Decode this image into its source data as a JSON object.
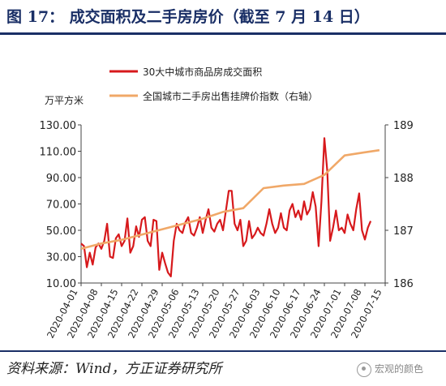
{
  "header": {
    "title": "图 17：   成交面积及二手房房价（截至 7 月 14 日）"
  },
  "footer": {
    "source": "资料来源：Wind，方正证券研究所",
    "watermark": "宏观的颜色"
  },
  "colors": {
    "series1": "#d7191c",
    "series2": "#f0a868",
    "axis": "#444444",
    "title": "#1a2f66"
  },
  "chart_data": {
    "type": "line",
    "left_unit": "万平方米",
    "legend": [
      "30大中城市商品房成交面积",
      "全国城市二手房出售挂牌价指数（右轴）"
    ],
    "ylim_left": [
      10,
      130
    ],
    "yticks_left": [
      "10.00",
      "30.00",
      "50.00",
      "70.00",
      "90.00",
      "110.00",
      "130.00"
    ],
    "ylim_right": [
      186,
      189
    ],
    "yticks_right": [
      "186",
      "187",
      "188",
      "189"
    ],
    "x_start": "2020-04-01",
    "x_end": "2020-07-15",
    "x_ticks": [
      "2020-04-01",
      "2020-04-08",
      "2020-04-15",
      "2020-04-22",
      "2020-04-29",
      "2020-05-06",
      "2020-05-13",
      "2020-05-20",
      "2020-05-27",
      "2020-06-03",
      "2020-06-10",
      "2020-06-17",
      "2020-06-24",
      "2020-07-01",
      "2020-07-08",
      "2020-07-15"
    ],
    "series": [
      {
        "name": "30大中城市商品房成交面积",
        "axis": "left",
        "points": [
          [
            "2020-04-01",
            40
          ],
          [
            "2020-04-02",
            38
          ],
          [
            "2020-04-03",
            22
          ],
          [
            "2020-04-04",
            33
          ],
          [
            "2020-04-05",
            24
          ],
          [
            "2020-04-06",
            37
          ],
          [
            "2020-04-07",
            40
          ],
          [
            "2020-04-08",
            36
          ],
          [
            "2020-04-09",
            42
          ],
          [
            "2020-04-10",
            55
          ],
          [
            "2020-04-11",
            30
          ],
          [
            "2020-04-12",
            29
          ],
          [
            "2020-04-13",
            44
          ],
          [
            "2020-04-14",
            47
          ],
          [
            "2020-04-15",
            38
          ],
          [
            "2020-04-16",
            42
          ],
          [
            "2020-04-17",
            59
          ],
          [
            "2020-04-18",
            33
          ],
          [
            "2020-04-19",
            38
          ],
          [
            "2020-04-20",
            53
          ],
          [
            "2020-04-21",
            45
          ],
          [
            "2020-04-22",
            58
          ],
          [
            "2020-04-23",
            60
          ],
          [
            "2020-04-24",
            42
          ],
          [
            "2020-04-25",
            38
          ],
          [
            "2020-04-26",
            58
          ],
          [
            "2020-04-27",
            57
          ],
          [
            "2020-04-28",
            20
          ],
          [
            "2020-04-29",
            33
          ],
          [
            "2020-04-30",
            25
          ],
          [
            "2020-05-01",
            18
          ],
          [
            "2020-05-02",
            15
          ],
          [
            "2020-05-03",
            42
          ],
          [
            "2020-05-04",
            55
          ],
          [
            "2020-05-05",
            50
          ],
          [
            "2020-05-06",
            48
          ],
          [
            "2020-05-07",
            56
          ],
          [
            "2020-05-08",
            60
          ],
          [
            "2020-05-09",
            48
          ],
          [
            "2020-05-10",
            46
          ],
          [
            "2020-05-11",
            52
          ],
          [
            "2020-05-12",
            60
          ],
          [
            "2020-05-13",
            48
          ],
          [
            "2020-05-14",
            58
          ],
          [
            "2020-05-15",
            66
          ],
          [
            "2020-05-16",
            52
          ],
          [
            "2020-05-17",
            49
          ],
          [
            "2020-05-18",
            55
          ],
          [
            "2020-05-19",
            58
          ],
          [
            "2020-05-20",
            50
          ],
          [
            "2020-05-21",
            65
          ],
          [
            "2020-05-22",
            80
          ],
          [
            "2020-05-23",
            80
          ],
          [
            "2020-05-24",
            55
          ],
          [
            "2020-05-25",
            50
          ],
          [
            "2020-05-26",
            58
          ],
          [
            "2020-05-27",
            38
          ],
          [
            "2020-05-28",
            42
          ],
          [
            "2020-05-29",
            57
          ],
          [
            "2020-05-30",
            44
          ],
          [
            "2020-05-31",
            47
          ],
          [
            "2020-06-01",
            52
          ],
          [
            "2020-06-02",
            48
          ],
          [
            "2020-06-03",
            46
          ],
          [
            "2020-06-04",
            55
          ],
          [
            "2020-06-05",
            66
          ],
          [
            "2020-06-06",
            55
          ],
          [
            "2020-06-07",
            48
          ],
          [
            "2020-06-08",
            52
          ],
          [
            "2020-06-09",
            63
          ],
          [
            "2020-06-10",
            52
          ],
          [
            "2020-06-11",
            50
          ],
          [
            "2020-06-12",
            65
          ],
          [
            "2020-06-13",
            70
          ],
          [
            "2020-06-14",
            60
          ],
          [
            "2020-06-15",
            65
          ],
          [
            "2020-06-16",
            58
          ],
          [
            "2020-06-17",
            72
          ],
          [
            "2020-06-18",
            62
          ],
          [
            "2020-06-19",
            66
          ],
          [
            "2020-06-20",
            79
          ],
          [
            "2020-06-21",
            68
          ],
          [
            "2020-06-22",
            38
          ],
          [
            "2020-06-23",
            72
          ],
          [
            "2020-06-24",
            120
          ],
          [
            "2020-06-25",
            95
          ],
          [
            "2020-06-26",
            42
          ],
          [
            "2020-06-27",
            52
          ],
          [
            "2020-06-28",
            65
          ],
          [
            "2020-06-29",
            50
          ],
          [
            "2020-06-30",
            52
          ],
          [
            "2020-07-01",
            48
          ],
          [
            "2020-07-02",
            62
          ],
          [
            "2020-07-03",
            55
          ],
          [
            "2020-07-04",
            50
          ],
          [
            "2020-07-05",
            66
          ],
          [
            "2020-07-06",
            78
          ],
          [
            "2020-07-07",
            50
          ],
          [
            "2020-07-08",
            43
          ],
          [
            "2020-07-09",
            52
          ],
          [
            "2020-07-10",
            57
          ]
        ]
      },
      {
        "name": "全国城市二手房出售挂牌价指数（右轴）",
        "axis": "right",
        "points": [
          [
            "2020-04-01",
            186.65
          ],
          [
            "2020-04-08",
            186.75
          ],
          [
            "2020-04-15",
            186.82
          ],
          [
            "2020-04-22",
            186.92
          ],
          [
            "2020-04-29",
            187.02
          ],
          [
            "2020-05-06",
            187.12
          ],
          [
            "2020-05-13",
            187.22
          ],
          [
            "2020-05-20",
            187.35
          ],
          [
            "2020-05-27",
            187.42
          ],
          [
            "2020-06-03",
            187.8
          ],
          [
            "2020-06-10",
            187.85
          ],
          [
            "2020-06-17",
            187.88
          ],
          [
            "2020-06-24",
            188.05
          ],
          [
            "2020-07-01",
            188.42
          ],
          [
            "2020-07-08",
            188.48
          ],
          [
            "2020-07-13",
            188.52
          ]
        ]
      }
    ]
  }
}
